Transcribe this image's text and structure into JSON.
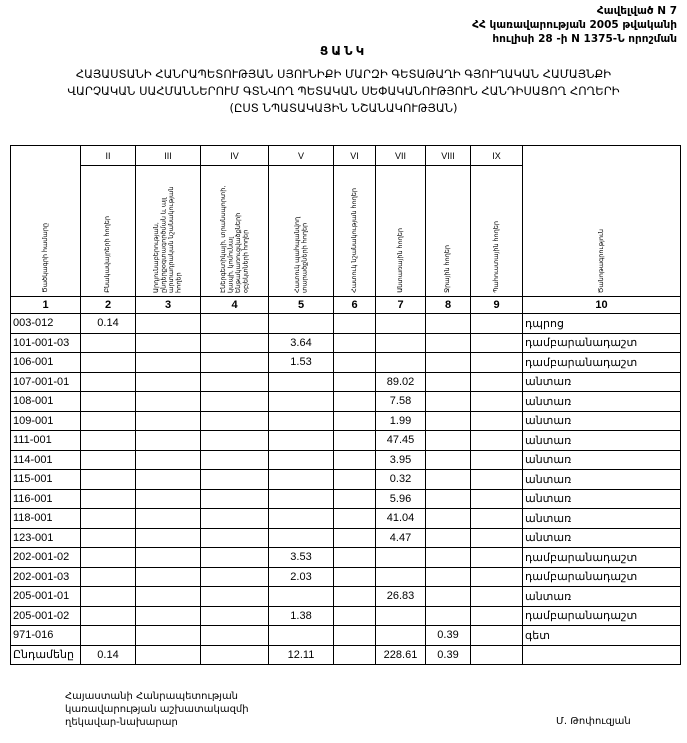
{
  "annex": {
    "line1": "Հավելված N 7",
    "line2": "ՀՀ կառավարության 2005 թվականի",
    "line3": "հուլիսի 28 -ի N 1375-Ն որոշման"
  },
  "title": "ՑԱՆԿ",
  "subtitle": {
    "line1": "ՀԱՅԱՍՏԱՆԻ ՀԱՆՐԱՊԵՏՈՒԹՅԱՆ ՍՅՈՒՆԻՔԻ ՄԱՐԶԻ ԳԵՏԱԹԱՂԻ ԳՅՈՒՂԱԿԱՆ ՀԱՄԱՅՆՔԻ",
    "line2": "ՎԱՐՉԱԿԱՆ ՍԱՀՄԱՆՆԵՐՈՒՄ  ԳՏՆՎՈՂ  ՊԵՏԱԿԱՆ ՍԵՓԱԿԱՆՈՒԹՅՈՒՆ  ՀԱՆԴԻՍԱՑՈՂ ՀՈՂԵՐԻ",
    "line3": "(ԸՍՏ ՆՊԱՏԱԿԱՅԻՆ ՆՇԱՆԱԿՈՒԹՅԱՆ)"
  },
  "table": {
    "roman": [
      "II",
      "III",
      "IV",
      "V",
      "VI",
      "VII",
      "VIII",
      "IX"
    ],
    "headers": [
      "Ծածկագրի համարը",
      "Բնակավայրերի հողեր",
      "Արդյունաբերության, ընդերքօգտագործման և այլ արտադրական նշանակության հողեր",
      "Էներգետիկայի, տրանսպորտի, կապի, կոմունալ ենթակառուցվածքների օբյեկտների հողեր",
      "Հատուկ պահպանվող տարածքների հողեր",
      "Հատուկ նշանակության հողեր",
      "Անտառային հողեր",
      "Ջրային հողեր",
      "Պահուստային հողեր",
      "Ծանոթագրություն"
    ],
    "numbers": [
      "1",
      "2",
      "3",
      "4",
      "5",
      "6",
      "7",
      "8",
      "9",
      "10"
    ],
    "rows": [
      [
        "003-012",
        "0.14",
        "",
        "",
        "",
        "",
        "",
        "",
        "",
        "դպրոց"
      ],
      [
        "101-001-03",
        "",
        "",
        "",
        "3.64",
        "",
        "",
        "",
        "",
        "դամբարանադաշտ"
      ],
      [
        "106-001",
        "",
        "",
        "",
        "1.53",
        "",
        "",
        "",
        "",
        "դամբարանադաշտ"
      ],
      [
        "107-001-01",
        "",
        "",
        "",
        "",
        "",
        "89.02",
        "",
        "",
        "անտառ"
      ],
      [
        "108-001",
        "",
        "",
        "",
        "",
        "",
        "7.58",
        "",
        "",
        "անտառ"
      ],
      [
        "109-001",
        "",
        "",
        "",
        "",
        "",
        "1.99",
        "",
        "",
        "անտառ"
      ],
      [
        "111-001",
        "",
        "",
        "",
        "",
        "",
        "47.45",
        "",
        "",
        "անտառ"
      ],
      [
        "114-001",
        "",
        "",
        "",
        "",
        "",
        "3.95",
        "",
        "",
        "անտառ"
      ],
      [
        "115-001",
        "",
        "",
        "",
        "",
        "",
        "0.32",
        "",
        "",
        "անտառ"
      ],
      [
        "116-001",
        "",
        "",
        "",
        "",
        "",
        "5.96",
        "",
        "",
        "անտառ"
      ],
      [
        "118-001",
        "",
        "",
        "",
        "",
        "",
        "41.04",
        "",
        "",
        "անտառ"
      ],
      [
        "123-001",
        "",
        "",
        "",
        "",
        "",
        "4.47",
        "",
        "",
        "անտառ"
      ],
      [
        "202-001-02",
        "",
        "",
        "",
        "3.53",
        "",
        "",
        "",
        "",
        "դամբարանադաշտ"
      ],
      [
        "202-001-03",
        "",
        "",
        "",
        "2.03",
        "",
        "",
        "",
        "",
        "դամբարանադաշտ"
      ],
      [
        "205-001-01",
        "",
        "",
        "",
        "",
        "",
        "26.83",
        "",
        "",
        "անտառ"
      ],
      [
        "205-001-02",
        "",
        "",
        "",
        "1.38",
        "",
        "",
        "",
        "",
        "դամբարանադաշտ"
      ],
      [
        "971-016",
        "",
        "",
        "",
        "",
        "",
        "",
        "0.39",
        "",
        "գետ"
      ],
      [
        "Ընդամենը",
        "0.14",
        "",
        "",
        "12.11",
        "",
        "228.61",
        "0.39",
        "",
        ""
      ]
    ]
  },
  "footer": {
    "line1": "Հայաստանի Հանրապետության",
    "line2": "կառավարության աշխատակազմի",
    "line3": "ղեկավար-նախարար",
    "signatory": "Մ. Թոփուզյան"
  }
}
